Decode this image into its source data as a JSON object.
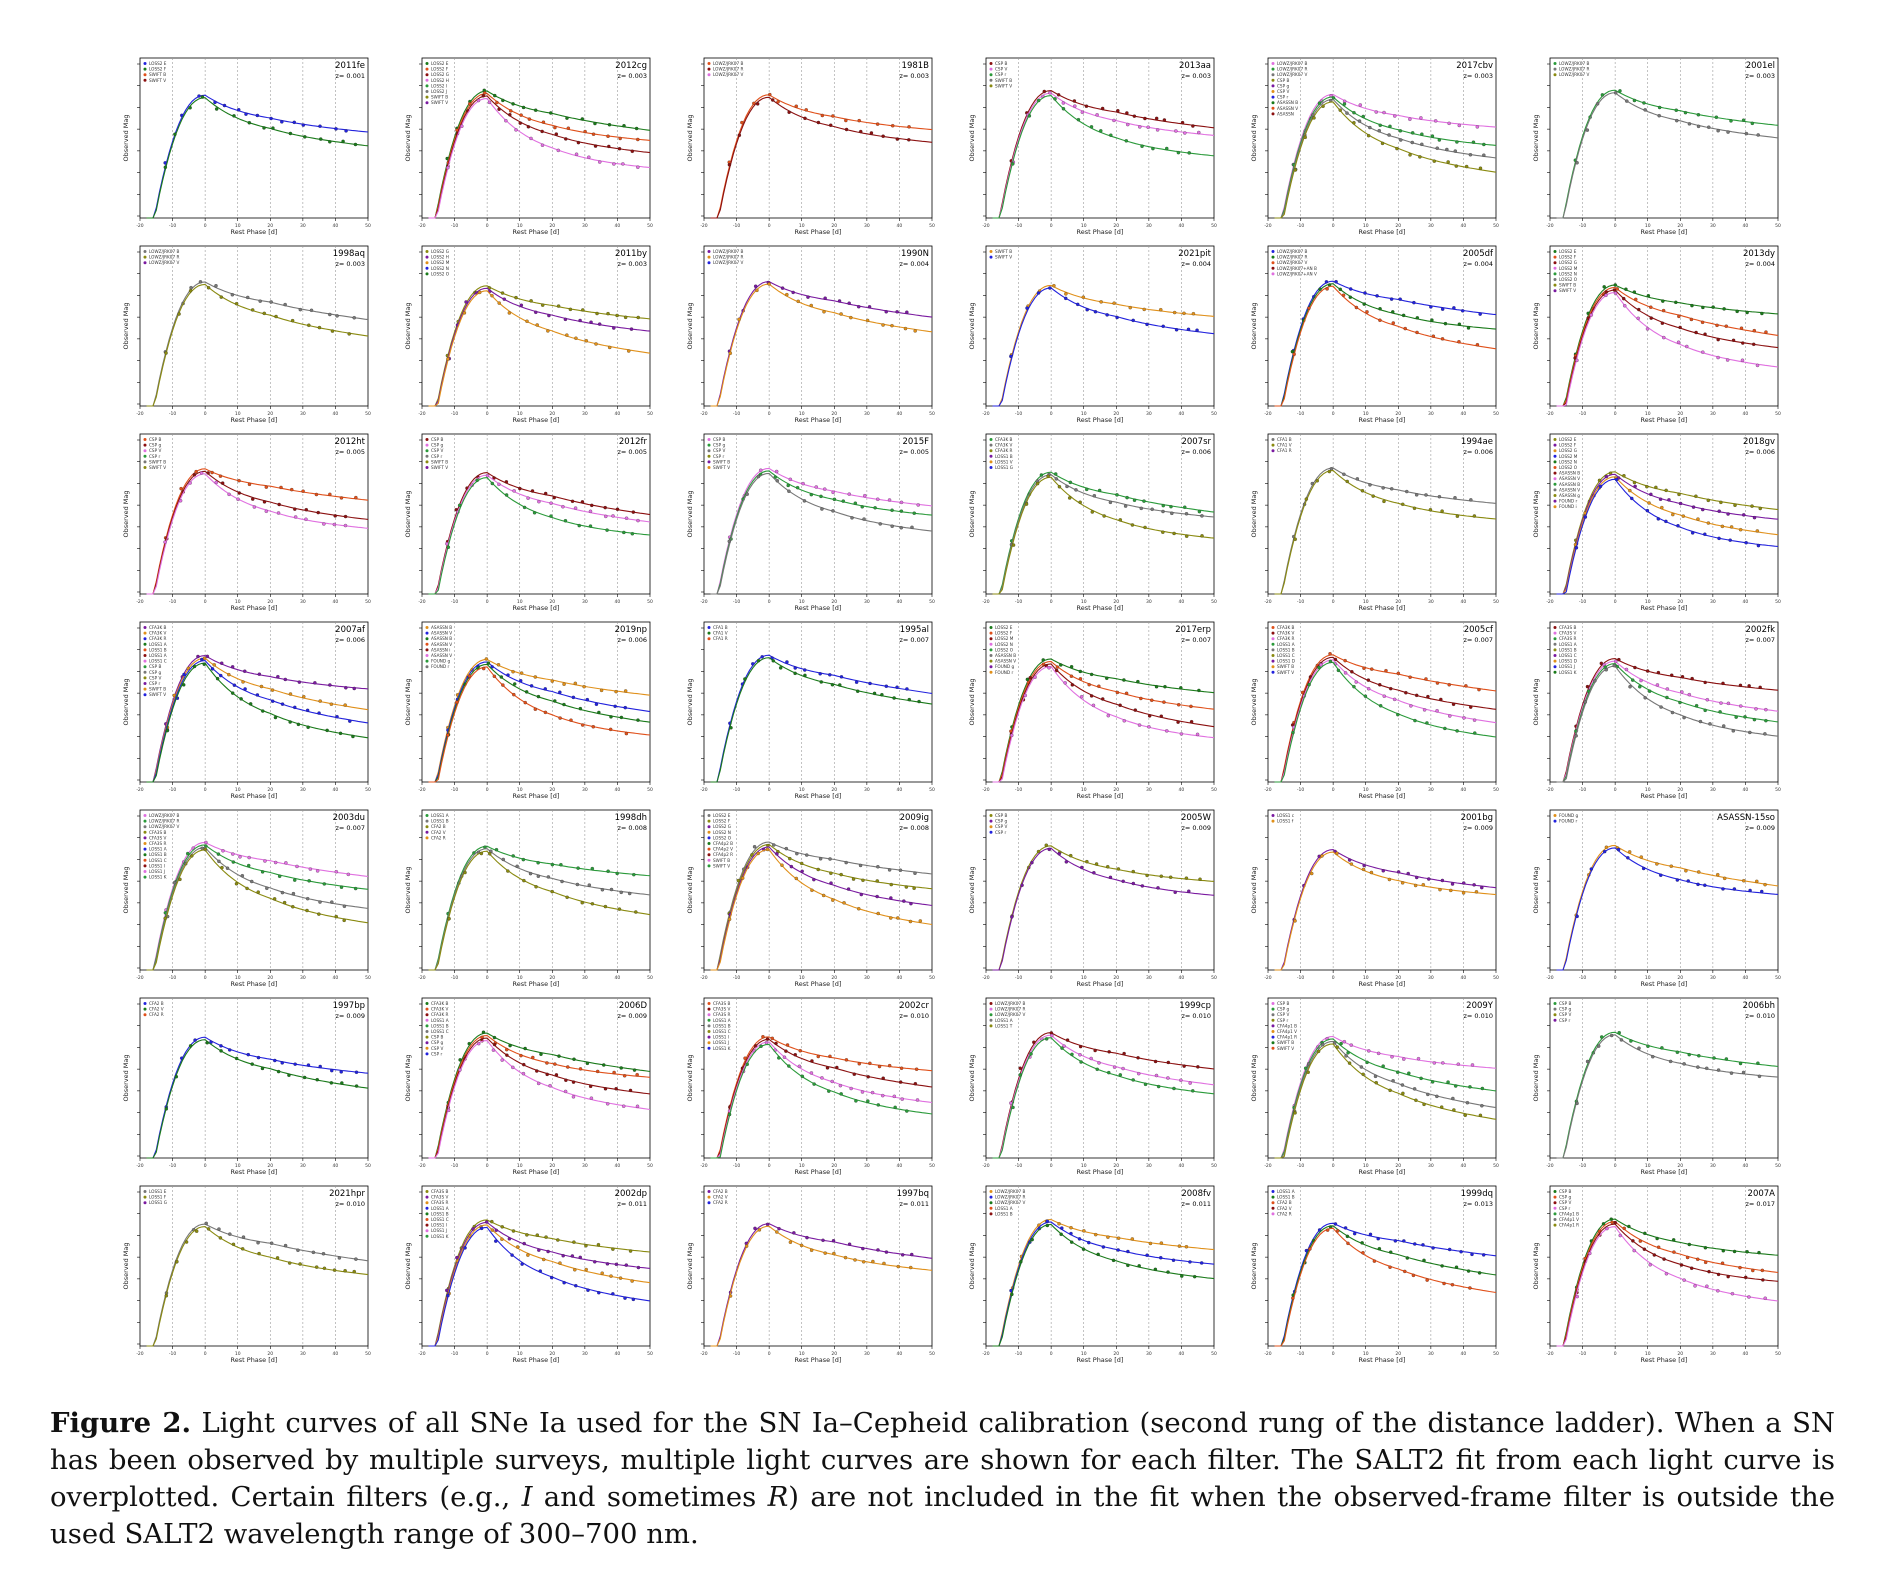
{
  "figure": {
    "panels": [
      {
        "name": "2011fe",
        "z": "z= 0.001",
        "legend": [
          "LOSS2 E",
          "LOSS2 F",
          "SWIFT B",
          "SWIFT V"
        ]
      },
      {
        "name": "2012cg",
        "z": "z= 0.003",
        "legend": [
          "LOSS2 E",
          "LOSS2 F",
          "LOSS2 G",
          "LOSS2 H",
          "LOSS2 I",
          "LOSS2 J",
          "SWIFT B",
          "SWIFT V"
        ]
      },
      {
        "name": "1981B",
        "z": "z= 0.003",
        "legend": [
          "LOWZ/JRK07 B",
          "LOWZ/JRK07 R",
          "LOWZ/JRK07 V"
        ]
      },
      {
        "name": "2013aa",
        "z": "z= 0.003",
        "legend": [
          "CSP B",
          "CSP V",
          "CSP r",
          "SWIFT B",
          "SWIFT V"
        ]
      },
      {
        "name": "2017cbv",
        "z": "z= 0.003",
        "legend": [
          "LOWZ/JRK07 B",
          "LOWZ/JRK07 R",
          "LOWZ/JRK07 V",
          "CSP B",
          "CSP g",
          "CSP V",
          "CSP r",
          "ASASSN B",
          "ASASSN V",
          "ASASSN"
        ]
      },
      {
        "name": "2001el",
        "z": "z= 0.003",
        "legend": [
          "LOWZ/JRK07 B",
          "LOWZ/JRK07 R",
          "LOWZ/JRK07 V"
        ]
      },
      {
        "name": "1998aq",
        "z": "z= 0.003",
        "legend": [
          "LOWZ/JRK07 B",
          "LOWZ/JRK07 R",
          "LOWZ/JRK07 V"
        ]
      },
      {
        "name": "2011by",
        "z": "z= 0.003",
        "legend": [
          "LOSS2 G",
          "LOSS2 H",
          "LOSS2 M",
          "LOSS2 N",
          "LOSS2 O"
        ]
      },
      {
        "name": "1990N",
        "z": "z= 0.004",
        "legend": [
          "LOWZ/JRK07 B",
          "LOWZ/JRK07 R",
          "LOWZ/JRK07 V"
        ]
      },
      {
        "name": "2021pit",
        "z": "z= 0.004",
        "legend": [
          "SWIFT B",
          "SWIFT V"
        ]
      },
      {
        "name": "2005df",
        "z": "z= 0.004",
        "legend": [
          "LOWZ/JRK07 B",
          "LOWZ/JRK07 R",
          "LOWZ/JRK07 V",
          "LOWZ/JRK07+AN B",
          "LOWZ/JRK07+AN V"
        ]
      },
      {
        "name": "2013dy",
        "z": "z= 0.004",
        "legend": [
          "LOSS2 E",
          "LOSS2 F",
          "LOSS2 G",
          "LOSS2 M",
          "LOSS2 N",
          "LOSS2 O",
          "SWIFT B",
          "SWIFT V"
        ]
      },
      {
        "name": "2012ht",
        "z": "z= 0.005",
        "legend": [
          "CSP B",
          "CSP g",
          "CSP V",
          "CSP r",
          "SWIFT B",
          "SWIFT V"
        ]
      },
      {
        "name": "2012fr",
        "z": "z= 0.005",
        "legend": [
          "CSP B",
          "CSP g",
          "CSP V",
          "CSP r",
          "SWIFT B",
          "SWIFT V"
        ]
      },
      {
        "name": "2015F",
        "z": "z= 0.005",
        "legend": [
          "CSP B",
          "CSP g",
          "CSP V",
          "CSP r",
          "SWIFT B",
          "SWIFT V"
        ]
      },
      {
        "name": "2007sr",
        "z": "z= 0.006",
        "legend": [
          "CFA3K B",
          "CFA3K V",
          "CFA3K R",
          "LOSS1 B",
          "LOSS1 V",
          "LOSS1 G"
        ]
      },
      {
        "name": "1994ae",
        "z": "z= 0.006",
        "legend": [
          "CFA1 B",
          "CFA1 V",
          "CFA1 R"
        ]
      },
      {
        "name": "2018gv",
        "z": "z= 0.006",
        "legend": [
          "LOSS2 E",
          "LOSS2 F",
          "LOSS2 G",
          "LOSS2 M",
          "LOSS2 N",
          "LOSS2 O",
          "ASASSN B",
          "ASASSN V",
          "ASASSN B",
          "ASASSN V",
          "ASASSN g",
          "FOUND r",
          "FOUND i"
        ]
      },
      {
        "name": "2007af",
        "z": "z= 0.006",
        "legend": [
          "CFA3K B",
          "CFA3K V",
          "CFA3K R",
          "LOSS1 A",
          "LOSS1 B",
          "LOSS1 A",
          "LOSS1 C",
          "CSP B",
          "CSP g",
          "CSP V",
          "CSP r",
          "SWIFT B",
          "SWIFT V"
        ]
      },
      {
        "name": "2019np",
        "z": "z= 0.006",
        "legend": [
          "ASASSN B",
          "ASASSN V",
          "ASASSN B",
          "ASASSN V",
          "ASASSN i",
          "ASASSN V",
          "FOUND g",
          "FOUND r"
        ]
      },
      {
        "name": "1995al",
        "z": "z= 0.007",
        "legend": [
          "CFA1 B",
          "CFA1 V",
          "CFA1 R"
        ]
      },
      {
        "name": "2017erp",
        "z": "z= 0.007",
        "legend": [
          "LOSS2 E",
          "LOSS2 F",
          "LOSS2 M",
          "LOSS2 N",
          "LOSS2 O",
          "ASASSN B",
          "ASASSN V",
          "FOUND g",
          "FOUND r"
        ]
      },
      {
        "name": "2005cf",
        "z": "z= 0.007",
        "legend": [
          "CFA3K B",
          "CFA3K V",
          "CFA3K R",
          "LOSS1 A",
          "LOSS1 B",
          "LOSS1 C",
          "LOSS1 D",
          "SWIFT B",
          "SWIFT V"
        ]
      },
      {
        "name": "2002fk",
        "z": "z= 0.007",
        "legend": [
          "CFA3S B",
          "CFA3S V",
          "CFA3S R",
          "LOSS1 A",
          "LOSS1 B",
          "LOSS1 C",
          "LOSS1 D",
          "LOSS1 J",
          "LOSS1 K"
        ]
      },
      {
        "name": "2003du",
        "z": "z= 0.007",
        "legend": [
          "LOWZ/JRK07 B",
          "LOWZ/JRK07 R",
          "LOWZ/JRK07 V",
          "CFA3S B",
          "CFA3S V",
          "CFA3S R",
          "LOSS1 A",
          "LOSS1 B",
          "LOSS1 C",
          "LOSS1 I",
          "LOSS1 J",
          "LOSS1 K"
        ]
      },
      {
        "name": "1998dh",
        "z": "z= 0.008",
        "legend": [
          "LOSS1 A",
          "LOSS1 B",
          "CFA2 B",
          "CFA2 V",
          "CFA2 R"
        ]
      },
      {
        "name": "2009ig",
        "z": "z= 0.008",
        "legend": [
          "LOSS2 E",
          "LOSS2 F",
          "LOSS2 G",
          "LOSS2 N",
          "LOSS2 O",
          "CFA4p2 B",
          "CFA4p2 V",
          "CFA4p2 R",
          "SWIFT B",
          "SWIFT V"
        ]
      },
      {
        "name": "2005W",
        "z": "z= 0.009",
        "legend": [
          "CSP B",
          "CSP g",
          "CSP V",
          "CSP r"
        ]
      },
      {
        "name": "2001bg",
        "z": "z= 0.009",
        "legend": [
          "LOSS1 c",
          "LOSS1 f"
        ]
      },
      {
        "name": "ASASSN-15so",
        "z": "z= 0.009",
        "legend": [
          "FOUND g",
          "FOUND r"
        ]
      },
      {
        "name": "1997bp",
        "z": "z= 0.009",
        "legend": [
          "CFA2 B",
          "CFA2 V",
          "CFA2 R"
        ]
      },
      {
        "name": "2006D",
        "z": "z= 0.009",
        "legend": [
          "CFA3K B",
          "CFA3K V",
          "CFA3K R",
          "LOSS1 A",
          "LOSS1 B",
          "LOSS1 C",
          "CSP B",
          "CSP g",
          "CSP V",
          "CSP r"
        ]
      },
      {
        "name": "2002cr",
        "z": "z= 0.010",
        "legend": [
          "CFA3S B",
          "CFA3S V",
          "CFA3S R",
          "LOSS1 A",
          "LOSS1 B",
          "LOSS1 C",
          "LOSS1 I",
          "LOSS1 J",
          "LOSS1 K"
        ]
      },
      {
        "name": "1999cp",
        "z": "z= 0.010",
        "legend": [
          "LOWZ/JRK07 B",
          "LOWZ/JRK07 R",
          "LOWZ/JRK07 V",
          "LOSS1 A",
          "LOSS1 T"
        ]
      },
      {
        "name": "2009Y",
        "z": "z= 0.010",
        "legend": [
          "CSP B",
          "CSP g",
          "CSP V",
          "CSP r",
          "CFA4p1 B",
          "CFA4p1 V",
          "CFA4p1 R",
          "SWIFT B",
          "SWIFT V"
        ]
      },
      {
        "name": "2006bh",
        "z": "z= 0.010",
        "legend": [
          "CSP B",
          "CSP g",
          "CSP V",
          "CSP r"
        ]
      },
      {
        "name": "2021hpr",
        "z": "z= 0.010",
        "legend": [
          "LOSS1 E",
          "LOSS1 F",
          "LOSS1 G"
        ]
      },
      {
        "name": "2002dp",
        "z": "z= 0.011",
        "legend": [
          "CFA3S B",
          "CFA3S V",
          "CFA3S R",
          "LOSS1 A",
          "LOSS1 B",
          "LOSS1 C",
          "LOSS1 I",
          "LOSS1 J",
          "LOSS1 K"
        ]
      },
      {
        "name": "1997bq",
        "z": "z= 0.011",
        "legend": [
          "CFA2 B",
          "CFA2 V",
          "CFA2 R"
        ]
      },
      {
        "name": "2008fv",
        "z": "z= 0.011",
        "legend": [
          "LOWZ/JRK07 B",
          "LOWZ/JRK07 R",
          "LOWZ/JRK07 V",
          "LOSS1 A",
          "LOSS1 B"
        ]
      },
      {
        "name": "1999dq",
        "z": "z= 0.013",
        "legend": [
          "LOSS1 A",
          "LOSS1 B",
          "CFA2 B",
          "CFA2 V",
          "CFA2 R"
        ]
      },
      {
        "name": "2007A",
        "z": "z= 0.017",
        "legend": [
          "CSP B",
          "CSP g",
          "CSP V",
          "CSP r",
          "CFA4p1 B",
          "CFA4p1 V",
          "CFA4p1 R"
        ]
      }
    ],
    "axis": {
      "xlabel": "Rest Phase [d]",
      "ylabel": "Observed Mag",
      "xticks": [
        "-20",
        "-10",
        "0",
        "10",
        "20",
        "30",
        "40",
        "50"
      ]
    },
    "colors": {
      "B": "#2222dd",
      "V": "#1a7a1a",
      "R": "#e0501a",
      "I": "#8b1010",
      "g": "#2a9a3a",
      "r": "#e03030",
      "U": "#7a1aa0",
      "pink": "#e070e0",
      "gray": "#777777",
      "olive": "#8a8a10",
      "brown": "#a0522d",
      "orange": "#e0901a"
    }
  },
  "caption": {
    "label": "Figure 2.",
    "text": " Light curves of all SNe Ia used for the SN Ia–Cepheid calibration (second rung of the distance ladder). When a SN has been observed by multiple surveys, multiple light curves are shown for each filter. The SALT2 fit from each light curve is overplotted. Certain filters (e.g., ",
    "filter_i": "I",
    "text2": " and sometimes ",
    "filter_r": "R",
    "text3": ") are not included in the fit when the observed-frame filter is outside the used SALT2 wavelength range of 300–700 nm."
  }
}
